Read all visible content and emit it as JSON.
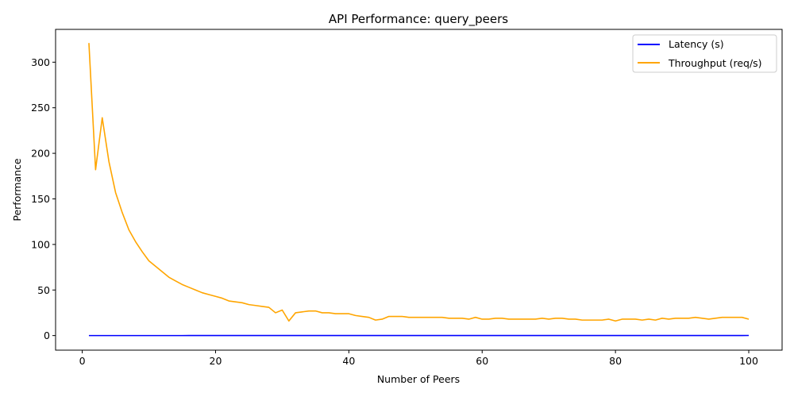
{
  "chart_data": {
    "type": "line",
    "title": "API Performance: query_peers",
    "xlabel": "Number of Peers",
    "ylabel": "Performance",
    "xlim": [
      -4,
      105
    ],
    "ylim": [
      -16,
      336
    ],
    "xticks": [
      0,
      20,
      40,
      60,
      80,
      100
    ],
    "yticks": [
      0,
      50,
      100,
      150,
      200,
      250,
      300
    ],
    "grid": false,
    "legend_position": "upper right",
    "x": [
      1,
      2,
      3,
      4,
      5,
      6,
      7,
      8,
      9,
      10,
      11,
      12,
      13,
      14,
      15,
      16,
      17,
      18,
      19,
      20,
      21,
      22,
      23,
      24,
      25,
      26,
      27,
      28,
      29,
      30,
      31,
      32,
      33,
      34,
      35,
      36,
      37,
      38,
      39,
      40,
      41,
      42,
      43,
      44,
      45,
      46,
      47,
      48,
      49,
      50,
      51,
      52,
      53,
      54,
      55,
      56,
      57,
      58,
      59,
      60,
      61,
      62,
      63,
      64,
      65,
      66,
      67,
      68,
      69,
      70,
      71,
      72,
      73,
      74,
      75,
      76,
      77,
      78,
      79,
      80,
      81,
      82,
      83,
      84,
      85,
      86,
      87,
      88,
      89,
      90,
      91,
      92,
      93,
      94,
      95,
      96,
      97,
      98,
      99,
      100
    ],
    "series": [
      {
        "name": "Latency (s)",
        "color": "#0000ff",
        "values": [
          0.003,
          0.006,
          0.004,
          0.005,
          0.006,
          0.007,
          0.009,
          0.01,
          0.011,
          0.012,
          0.014,
          0.015,
          0.016,
          0.017,
          0.018,
          0.019,
          0.02,
          0.021,
          0.022,
          0.023,
          0.025,
          0.026,
          0.027,
          0.028,
          0.03,
          0.031,
          0.032,
          0.033,
          0.035,
          0.036,
          0.04,
          0.038,
          0.039,
          0.04,
          0.041,
          0.042,
          0.043,
          0.044,
          0.045,
          0.046,
          0.047,
          0.048,
          0.049,
          0.05,
          0.051,
          0.052,
          0.053,
          0.054,
          0.055,
          0.056,
          0.057,
          0.058,
          0.059,
          0.06,
          0.061,
          0.062,
          0.063,
          0.064,
          0.065,
          0.066,
          0.067,
          0.068,
          0.069,
          0.07,
          0.071,
          0.072,
          0.073,
          0.074,
          0.075,
          0.076,
          0.077,
          0.078,
          0.079,
          0.08,
          0.081,
          0.082,
          0.083,
          0.084,
          0.085,
          0.086,
          0.087,
          0.088,
          0.089,
          0.09,
          0.091,
          0.092,
          0.093,
          0.094,
          0.095,
          0.096,
          0.097,
          0.098,
          0.099,
          0.1,
          0.101,
          0.102,
          0.103,
          0.104,
          0.105,
          0.106
        ]
      },
      {
        "name": "Throughput (req/s)",
        "color": "#ffa500",
        "values": [
          321,
          182,
          239,
          191,
          157,
          135,
          116,
          103,
          92,
          82,
          76,
          70,
          64,
          60,
          56,
          53,
          50,
          47,
          45,
          43,
          41,
          38,
          37,
          36,
          34,
          33,
          32,
          31,
          25,
          28,
          16,
          25,
          26,
          27,
          27,
          25,
          25,
          24,
          24,
          24,
          22,
          21,
          20,
          17,
          18,
          21,
          21,
          21,
          20,
          20,
          20,
          20,
          20,
          20,
          19,
          19,
          19,
          18,
          20,
          18,
          18,
          19,
          19,
          18,
          18,
          18,
          18,
          18,
          19,
          18,
          19,
          19,
          18,
          18,
          17,
          17,
          17,
          17,
          18,
          16,
          18,
          18,
          18,
          17,
          18,
          17,
          19,
          18,
          19,
          19,
          19,
          20,
          19,
          18,
          19,
          20,
          20,
          20,
          20,
          18
        ]
      }
    ]
  }
}
